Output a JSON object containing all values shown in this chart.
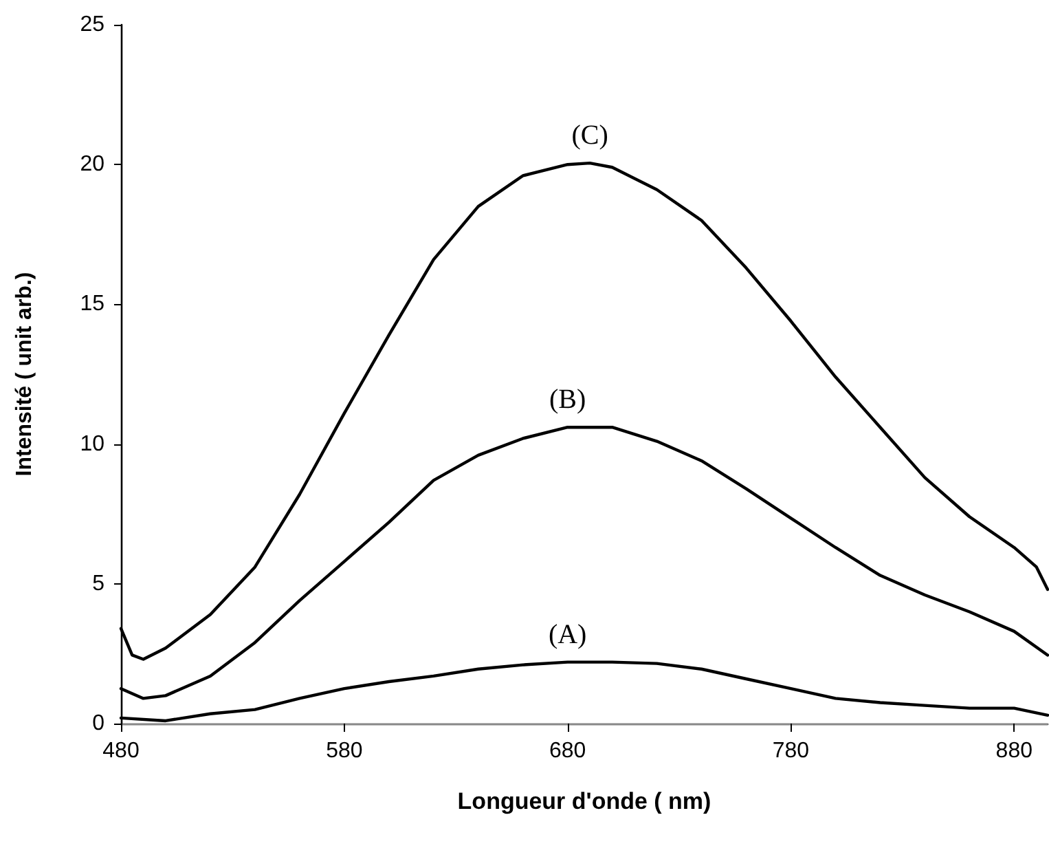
{
  "chart_data": {
    "type": "line",
    "xlabel": "Longueur d'onde ( nm)",
    "ylabel": "Intensité ( unit arb.)",
    "xlim": [
      480,
      895
    ],
    "xticks": [
      480,
      580,
      680,
      780,
      880
    ],
    "ylim": [
      0,
      25
    ],
    "yticks": [
      0,
      5,
      10,
      15,
      20,
      25
    ],
    "grid": false,
    "marker": "none",
    "line_style": "solid",
    "series": [
      {
        "name": "(C)",
        "color": "#000000",
        "x": [
          480,
          485,
          490,
          500,
          520,
          540,
          560,
          580,
          600,
          620,
          640,
          660,
          680,
          690,
          700,
          720,
          740,
          760,
          780,
          800,
          820,
          840,
          860,
          880,
          890,
          895
        ],
        "values": [
          3.4,
          2.45,
          2.3,
          2.7,
          3.9,
          5.6,
          8.2,
          11.1,
          13.9,
          16.6,
          18.5,
          19.6,
          20.0,
          20.05,
          19.9,
          19.1,
          18.0,
          16.3,
          14.4,
          12.4,
          10.6,
          8.8,
          7.4,
          6.3,
          5.6,
          4.8
        ]
      },
      {
        "name": "(B)",
        "color": "#000000",
        "x": [
          480,
          490,
          500,
          520,
          540,
          560,
          580,
          600,
          620,
          640,
          660,
          680,
          700,
          720,
          740,
          760,
          780,
          800,
          820,
          840,
          860,
          880,
          895
        ],
        "values": [
          1.25,
          0.9,
          1.0,
          1.7,
          2.9,
          4.4,
          5.8,
          7.2,
          8.7,
          9.6,
          10.2,
          10.6,
          10.6,
          10.1,
          9.4,
          8.4,
          7.35,
          6.3,
          5.3,
          4.6,
          4.0,
          3.3,
          2.45
        ]
      },
      {
        "name": "(A)",
        "color": "#000000",
        "x": [
          480,
          500,
          520,
          540,
          560,
          580,
          600,
          620,
          640,
          660,
          680,
          700,
          720,
          740,
          760,
          780,
          800,
          820,
          840,
          860,
          880,
          895
        ],
        "values": [
          0.2,
          0.1,
          0.35,
          0.5,
          0.9,
          1.25,
          1.5,
          1.7,
          1.95,
          2.1,
          2.2,
          2.2,
          2.15,
          1.95,
          1.6,
          1.25,
          0.9,
          0.75,
          0.65,
          0.55,
          0.55,
          0.3
        ]
      }
    ]
  }
}
